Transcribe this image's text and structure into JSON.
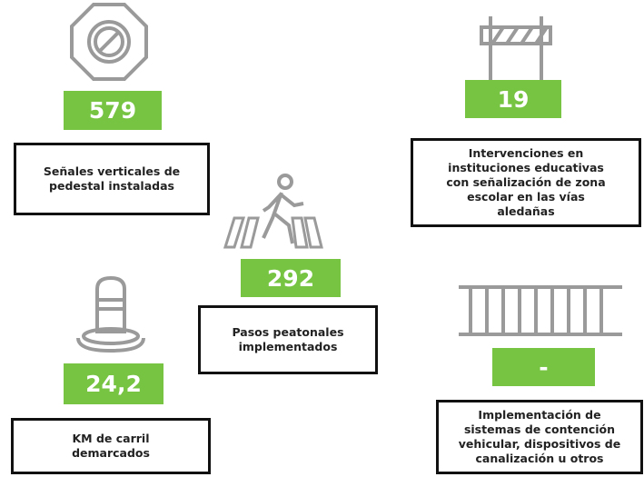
{
  "items": [
    {
      "value": "579",
      "label_lines": [
        "Señales verticales  de",
        "pedestal instaladas"
      ]
    },
    {
      "value": "19",
      "label_lines": [
        "Intervenciones en",
        "instituciones educativas",
        "con señalización de zona",
        "escolar en las vías",
        "aledañas"
      ]
    },
    {
      "value": "292",
      "label_lines": [
        "Pasos peatonales",
        "implementados"
      ]
    },
    {
      "value": "24,2",
      "label_lines": [
        "KM de carril",
        "demarcados"
      ]
    },
    {
      "value": "-",
      "label_lines": [
        "Implementación de",
        "sistemas de contención",
        "vehicular, dispositivos de",
        "canalización u otros"
      ]
    }
  ]
}
